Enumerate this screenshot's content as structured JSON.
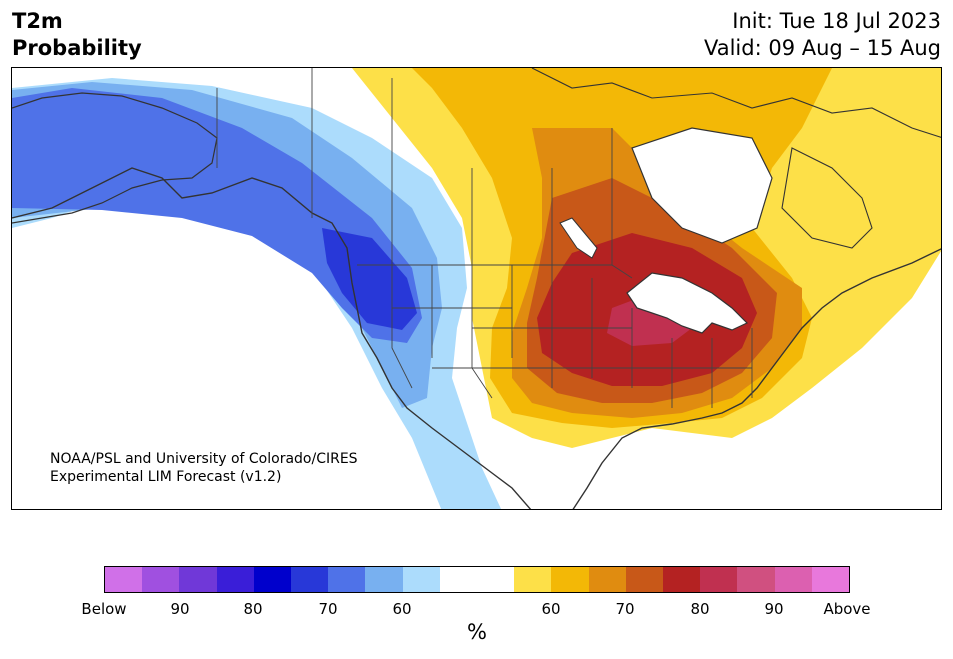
{
  "header": {
    "title_line1": "T2m",
    "title_line2": "Probability",
    "init": "Init: Tue 18 Jul 2023",
    "valid": "Valid: 09 Aug – 15 Aug"
  },
  "map": {
    "credit_line1": "NOAA/PSL and University of Colorado/CIRES",
    "credit_line2": "Experimental LIM Forecast (v1.2)",
    "colors": {
      "land_outline": "#333333",
      "water": "#ffffff"
    }
  },
  "colorbar": {
    "unit": "%",
    "tick_labels": [
      "Below",
      "90",
      "80",
      "70",
      "60",
      "60",
      "70",
      "80",
      "90",
      "Above"
    ],
    "colors": [
      "#d070e8",
      "#a050e0",
      "#7038d8",
      "#3a1ed8",
      "#0000cc",
      "#2838d8",
      "#4f72e8",
      "#78b0f0",
      "#acdcfc",
      "#ffffff",
      "#ffffff",
      "#fde048",
      "#f3b806",
      "#e08c10",
      "#c85818",
      "#b42222",
      "#c03050",
      "#d05080",
      "#dc60b0",
      "#e878dc"
    ]
  }
}
